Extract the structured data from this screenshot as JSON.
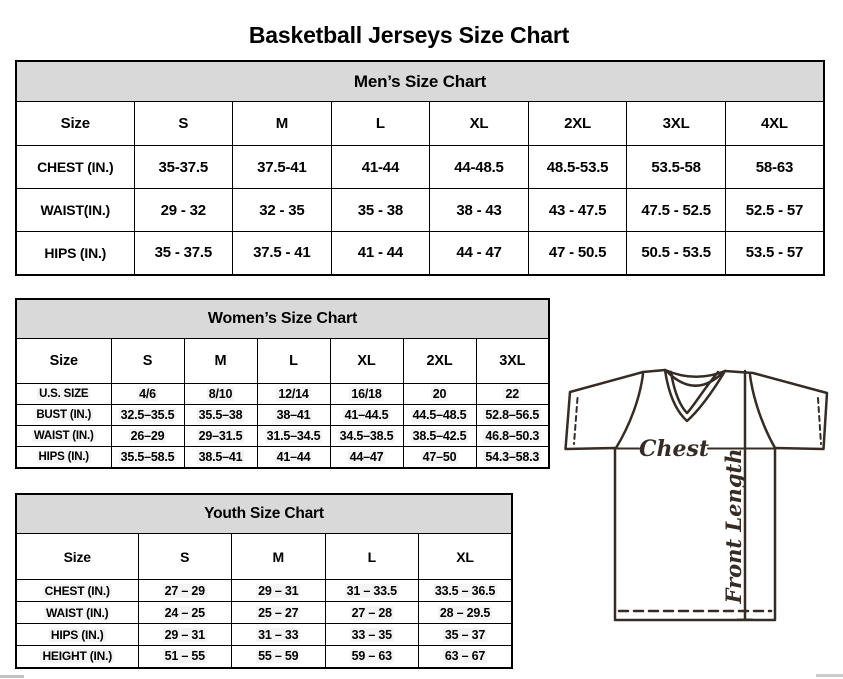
{
  "page_title": "Basketball Jerseys Size Chart",
  "colors": {
    "table_header_bg": "#d9d9d9",
    "table_border": "#000000",
    "jersey_outline": "#362c25",
    "cell_highlight_bg": "#f4f4f4"
  },
  "tables": [
    {
      "id": "mens",
      "title": "Men’s Size Chart",
      "columns": [
        "Size",
        "S",
        "M",
        "L",
        "XL",
        "2XL",
        "3XL",
        "4XL"
      ],
      "rows": [
        {
          "label": "CHEST (IN.)",
          "values": [
            "35-37.5",
            "37.5-41",
            "41-44",
            "44-48.5",
            "48.5-53.5",
            "53.5-58",
            "58-63"
          ]
        },
        {
          "label": "WAIST(IN.)",
          "values": [
            "29 - 32",
            "32 - 35",
            "35 - 38",
            "38 - 43",
            "43 - 47.5",
            "47.5 - 52.5",
            "52.5 - 57"
          ]
        },
        {
          "label": "HIPS (IN.)",
          "values": [
            "35 - 37.5",
            "37.5 - 41",
            "41 - 44",
            "44 - 47",
            "47 - 50.5",
            "50.5 - 53.5",
            "53.5 - 57"
          ]
        }
      ]
    },
    {
      "id": "womens",
      "title": "Women’s Size Chart",
      "columns": [
        "Size",
        "S",
        "M",
        "L",
        "XL",
        "2XL",
        "3XL"
      ],
      "rows": [
        {
          "label": "U.S. SIZE",
          "values": [
            "4/6",
            "8/10",
            "12/14",
            "16/18",
            "20",
            "22"
          ]
        },
        {
          "label": "BUST (IN.)",
          "values": [
            "32.5–35.5",
            "35.5–38",
            "38–41",
            "41–44.5",
            "44.5–48.5",
            "52.8–56.5"
          ]
        },
        {
          "label": "WAIST (IN.)",
          "values": [
            "26–29",
            "29–31.5",
            "31.5–34.5",
            "34.5–38.5",
            "38.5–42.5",
            "46.8–50.3"
          ]
        },
        {
          "label": "HIPS (IN.)",
          "values": [
            "35.5–58.5",
            "38.5–41",
            "41–44",
            "44–47",
            "47–50",
            "54.3–58.3"
          ]
        }
      ]
    },
    {
      "id": "youth",
      "title": "Youth Size Chart",
      "columns": [
        "Size",
        "S",
        "M",
        "L",
        "XL"
      ],
      "rows": [
        {
          "label": "CHEST (IN.)",
          "values": [
            "27 – 29",
            "29 – 31",
            "31 – 33.5",
            "33.5 – 36.5"
          ]
        },
        {
          "label": "WAIST (IN.)",
          "values": [
            "24 – 25",
            "25 – 27",
            "27 – 28",
            "28 – 29.5"
          ]
        },
        {
          "label": "HIPS (IN.)",
          "values": [
            "29 – 31",
            "31 – 33",
            "33 – 35",
            "35 – 37"
          ]
        },
        {
          "label": "HEIGHT (IN.)",
          "values": [
            "51 – 55",
            "55 – 59",
            "59 – 63",
            "63 – 67"
          ]
        }
      ]
    }
  ],
  "diagram": {
    "chest_label": "Chest",
    "front_length_label": "Front Length"
  }
}
